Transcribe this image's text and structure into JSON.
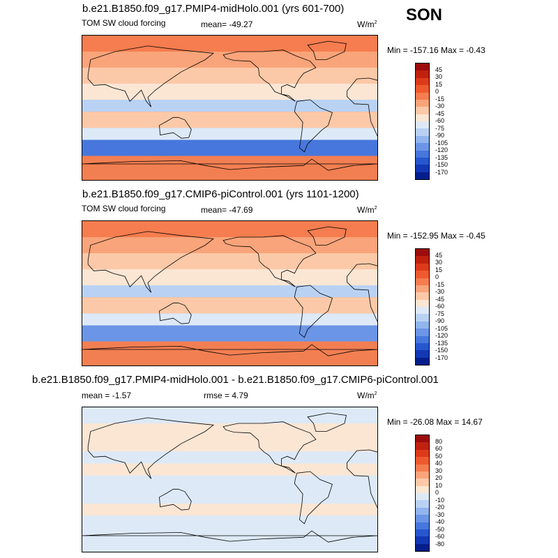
{
  "season": "SON",
  "panels": [
    {
      "title": "b.e21.B1850.f09_g17.PMIP4-midHolo.001 (yrs 601-700)",
      "left_label": "TOM SW cloud forcing",
      "center_label": "mean= -49.27",
      "unit_base": "W/m",
      "unit_exp": "2",
      "minmax": "Min = -157.16 Max =  -0.43",
      "colorbar": {
        "labels": [
          "45",
          "30",
          "15",
          "0",
          "-15",
          "-30",
          "-45",
          "-60",
          "-75",
          "-90",
          "-105",
          "-120",
          "-135",
          "-150",
          "-170"
        ],
        "colors": [
          "#9b0d0d",
          "#c0210f",
          "#dc3b1b",
          "#ee5a2f",
          "#f57d4f",
          "#f9a47a",
          "#fcc9a8",
          "#fbe6d4",
          "#dde9f7",
          "#b9d2f4",
          "#91b5ee",
          "#6b95e6",
          "#4777dc",
          "#2757cf",
          "#1238b4",
          "#051e8c"
        ]
      },
      "map": {
        "background": "#f27f52",
        "bands": [
          {
            "lat_top": 90,
            "lat_bottom": 70,
            "color": "#f57d4f"
          },
          {
            "lat_top": 70,
            "lat_bottom": 50,
            "color": "#f9a47a"
          },
          {
            "lat_top": 50,
            "lat_bottom": 30,
            "color": "#fcc9a8"
          },
          {
            "lat_top": 30,
            "lat_bottom": 10,
            "color": "#fbe6d4"
          },
          {
            "lat_top": 10,
            "lat_bottom": -5,
            "color": "#b9d2f4"
          },
          {
            "lat_top": -5,
            "lat_bottom": -25,
            "color": "#fcc9a8"
          },
          {
            "lat_top": -25,
            "lat_bottom": -40,
            "color": "#dde9f7"
          },
          {
            "lat_top": -40,
            "lat_bottom": -60,
            "color": "#4777dc"
          },
          {
            "lat_top": -60,
            "lat_bottom": -90,
            "color": "#f27f52"
          }
        ]
      }
    },
    {
      "title": "b.e21.B1850.f09_g17.CMIP6-piControl.001 (yrs 1101-1200)",
      "left_label": "TOM SW cloud forcing",
      "center_label": "mean= -47.69",
      "unit_base": "W/m",
      "unit_exp": "2",
      "minmax": "Min = -152.95 Max =  -0.45",
      "colorbar": {
        "labels": [
          "45",
          "30",
          "15",
          "0",
          "-15",
          "-30",
          "-45",
          "-60",
          "-75",
          "-90",
          "-105",
          "-120",
          "-135",
          "-150",
          "-170"
        ],
        "colors": [
          "#9b0d0d",
          "#c0210f",
          "#dc3b1b",
          "#ee5a2f",
          "#f57d4f",
          "#f9a47a",
          "#fcc9a8",
          "#fbe6d4",
          "#dde9f7",
          "#b9d2f4",
          "#91b5ee",
          "#6b95e6",
          "#4777dc",
          "#2757cf",
          "#1238b4",
          "#051e8c"
        ]
      },
      "map": {
        "background": "#f27f52",
        "bands": [
          {
            "lat_top": 90,
            "lat_bottom": 70,
            "color": "#f57d4f"
          },
          {
            "lat_top": 70,
            "lat_bottom": 50,
            "color": "#f9a47a"
          },
          {
            "lat_top": 50,
            "lat_bottom": 30,
            "color": "#fcc9a8"
          },
          {
            "lat_top": 30,
            "lat_bottom": 10,
            "color": "#fbe6d4"
          },
          {
            "lat_top": 10,
            "lat_bottom": -5,
            "color": "#b9d2f4"
          },
          {
            "lat_top": -5,
            "lat_bottom": -25,
            "color": "#fcc9a8"
          },
          {
            "lat_top": -25,
            "lat_bottom": -40,
            "color": "#dde9f7"
          },
          {
            "lat_top": -40,
            "lat_bottom": -60,
            "color": "#6b95e6"
          },
          {
            "lat_top": -60,
            "lat_bottom": -90,
            "color": "#f27f52"
          }
        ]
      }
    },
    {
      "title": "b.e21.B1850.f09_g17.PMIP4-midHolo.001 - b.e21.B1850.f09_g17.CMIP6-piControl.001",
      "left_label": "mean =  -1.57",
      "center_label": "rmse =   4.79",
      "unit_base": "W/m",
      "unit_exp": "2",
      "minmax": "Min = -26.08 Max =  14.67",
      "colorbar": {
        "labels": [
          "80",
          "60",
          "50",
          "40",
          "30",
          "20",
          "10",
          "0",
          "-10",
          "-20",
          "-30",
          "-40",
          "-50",
          "-60",
          "-80"
        ],
        "colors": [
          "#9b0d0d",
          "#c0210f",
          "#dc3b1b",
          "#ee5a2f",
          "#f57d4f",
          "#f9a47a",
          "#fcc9a8",
          "#fbe6d4",
          "#dde9f7",
          "#b9d2f4",
          "#91b5ee",
          "#6b95e6",
          "#4777dc",
          "#2757cf",
          "#1238b4",
          "#051e8c"
        ]
      },
      "map": {
        "background": "#dde9f7",
        "bands": [
          {
            "lat_top": 90,
            "lat_bottom": 70,
            "color": "#dde9f7"
          },
          {
            "lat_top": 70,
            "lat_bottom": 35,
            "color": "#fbe6d4"
          },
          {
            "lat_top": 35,
            "lat_bottom": 20,
            "color": "#dde9f7"
          },
          {
            "lat_top": 20,
            "lat_bottom": 5,
            "color": "#fbe6d4"
          },
          {
            "lat_top": 5,
            "lat_bottom": -30,
            "color": "#dde9f7"
          },
          {
            "lat_top": -30,
            "lat_bottom": -45,
            "color": "#fbe6d4"
          },
          {
            "lat_top": -45,
            "lat_bottom": -60,
            "color": "#dde9f7"
          },
          {
            "lat_top": -60,
            "lat_bottom": -90,
            "color": "#dde9f7"
          }
        ]
      }
    }
  ],
  "chart_data": [
    {
      "type": "heatmap",
      "title": "b.e21.B1850.f09_g17.PMIP4-midHolo.001 (yrs 601-700)",
      "variable": "TOM SW cloud forcing",
      "mean": -49.27,
      "min": -157.16,
      "max": -0.43,
      "units": "W/m2",
      "colorbar_levels": [
        45,
        30,
        15,
        0,
        -15,
        -30,
        -45,
        -60,
        -75,
        -90,
        -105,
        -120,
        -135,
        -150,
        -170
      ]
    },
    {
      "type": "heatmap",
      "title": "b.e21.B1850.f09_g17.CMIP6-piControl.001 (yrs 1101-1200)",
      "variable": "TOM SW cloud forcing",
      "mean": -47.69,
      "min": -152.95,
      "max": -0.45,
      "units": "W/m2",
      "colorbar_levels": [
        45,
        30,
        15,
        0,
        -15,
        -30,
        -45,
        -60,
        -75,
        -90,
        -105,
        -120,
        -135,
        -150,
        -170
      ]
    },
    {
      "type": "heatmap",
      "title": "b.e21.B1850.f09_g17.PMIP4-midHolo.001 - b.e21.B1850.f09_g17.CMIP6-piControl.001",
      "mean": -1.57,
      "rmse": 4.79,
      "min": -26.08,
      "max": 14.67,
      "units": "W/m2",
      "colorbar_levels": [
        80,
        60,
        50,
        40,
        30,
        20,
        10,
        0,
        -10,
        -20,
        -30,
        -40,
        -50,
        -60,
        -80
      ]
    }
  ]
}
